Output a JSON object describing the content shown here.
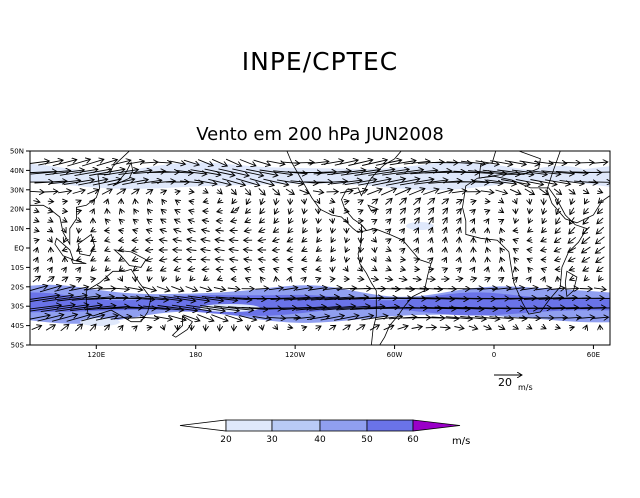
{
  "header": "INPE/CPTEC",
  "title": "Vento em 200 hPa JUN2008",
  "lat_labels": [
    "50N",
    "40N",
    "30N",
    "20N",
    "10N",
    "EQ",
    "10S",
    "20S",
    "30S",
    "40S",
    "50S"
  ],
  "lon_labels": [
    "120E",
    "180",
    "120W",
    "60W",
    "0",
    "60E"
  ],
  "reference_vector": {
    "value": "20",
    "unit": "m/s"
  },
  "colorbar": {
    "ticks": [
      "20",
      "30",
      "40",
      "50",
      "60"
    ],
    "unit": "m/s",
    "colors": [
      "#ffffff",
      "#dfe8fb",
      "#b9cbf6",
      "#909ff0",
      "#6a73e8",
      "#3e44d8",
      "#9a00c8"
    ]
  },
  "map": {
    "lon_range": [
      80,
      430
    ],
    "lat_range": [
      -50,
      50
    ],
    "jet_bands": [
      {
        "lat_center": -29,
        "half_width": 7,
        "level": 3
      },
      {
        "lat_center": -29,
        "half_width": 4,
        "level": 4
      },
      {
        "lat_center": 37,
        "half_width": 5,
        "level": 1
      }
    ]
  }
}
